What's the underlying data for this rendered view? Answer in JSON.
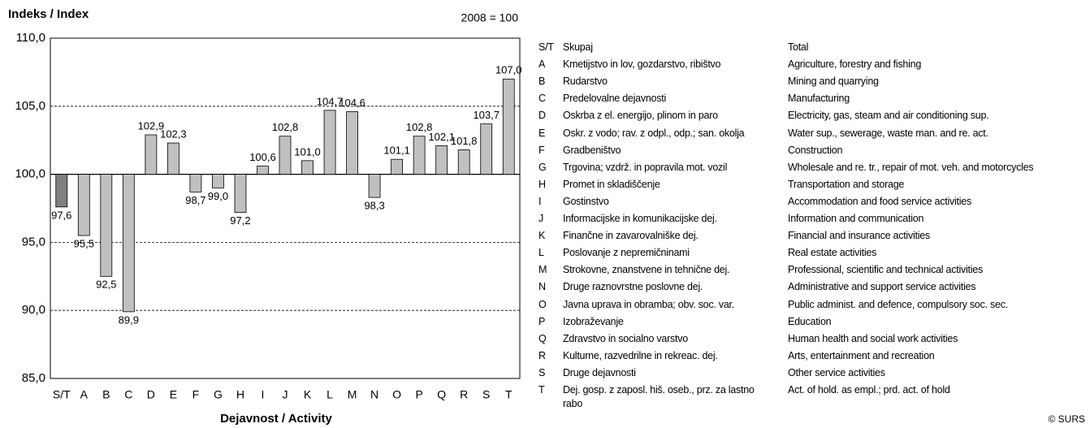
{
  "chart_data": {
    "type": "bar",
    "title": "Indeks / Index",
    "annotation": "2008 = 100",
    "x_label": "Dejavnost / Activity",
    "copyright": "© SURS",
    "categories": [
      "S/T",
      "A",
      "B",
      "C",
      "D",
      "E",
      "F",
      "G",
      "H",
      "I",
      "J",
      "K",
      "L",
      "M",
      "N",
      "O",
      "P",
      "Q",
      "R",
      "S",
      "T"
    ],
    "values": [
      97.6,
      95.5,
      92.5,
      89.9,
      102.9,
      102.3,
      98.7,
      99.0,
      97.2,
      100.6,
      102.8,
      101.0,
      104.7,
      104.6,
      98.3,
      101.1,
      102.8,
      102.1,
      101.8,
      103.7,
      107.0
    ],
    "value_labels": [
      "97,6",
      "95,5",
      "92,5",
      "89,9",
      "102,9",
      "102,3",
      "98,7",
      "99,0",
      "97,2",
      "100,6",
      "102,8",
      "101,0",
      "104,7",
      "104,6",
      "98,3",
      "101,1",
      "102,8",
      "102,1",
      "101,8",
      "103,7",
      "107,0"
    ],
    "colors": [
      "#808080",
      "#c0c0c0",
      "#c0c0c0",
      "#c0c0c0",
      "#c0c0c0",
      "#c0c0c0",
      "#c0c0c0",
      "#c0c0c0",
      "#c0c0c0",
      "#c0c0c0",
      "#c0c0c0",
      "#c0c0c0",
      "#c0c0c0",
      "#c0c0c0",
      "#c0c0c0",
      "#c0c0c0",
      "#c0c0c0",
      "#c0c0c0",
      "#c0c0c0",
      "#c0c0c0",
      "#c0c0c0"
    ],
    "baseline": 100,
    "ylim": [
      85,
      110
    ],
    "yticks": [
      {
        "value": 85,
        "label": "85,0"
      },
      {
        "value": 90,
        "label": "90,0"
      },
      {
        "value": 95,
        "label": "95,0"
      },
      {
        "value": 100,
        "label": "100,0"
      },
      {
        "value": 105,
        "label": "105,0"
      },
      {
        "value": 110,
        "label": "110,0"
      }
    ],
    "grid": true,
    "legend_table": {
      "rows": [
        [
          "S/T",
          "Skupaj",
          "Total"
        ],
        [
          "A",
          "Kmetijstvo in lov, gozdarstvo, ribištvo",
          "Agriculture, forestry and fishing"
        ],
        [
          "B",
          "Rudarstvo",
          "Mining and quarrying"
        ],
        [
          "C",
          "Predelovalne dejavnosti",
          "Manufacturing"
        ],
        [
          "D",
          "Oskrba z el. energijo, plinom in paro",
          "Electricity, gas, steam and air conditioning sup."
        ],
        [
          "E",
          "Oskr. z vodo; rav. z odpl., odp.; san. okolja",
          "Water sup., sewerage, waste man. and re. act."
        ],
        [
          "F",
          "Gradbeništvo",
          "Construction"
        ],
        [
          "G",
          "Trgovina; vzdrž. in popravila mot. vozil",
          "Wholesale and re. tr., repair of mot. veh. and motorcycles"
        ],
        [
          "H",
          "Promet in skladiščenje",
          "Transportation and storage"
        ],
        [
          "I",
          "Gostinstvo",
          "Accommodation and food service activities"
        ],
        [
          "J",
          "Informacijske in komunikacijske dej.",
          "Information and communication"
        ],
        [
          "K",
          "Finančne in zavarovalniške dej.",
          "Financial and insurance activities"
        ],
        [
          "L",
          "Poslovanje z nepremičninami",
          "Real estate activities"
        ],
        [
          "M",
          "Strokovne, znanstvene in tehnične dej.",
          "Professional, scientific and technical activities"
        ],
        [
          "N",
          "Druge raznovrstne poslovne dej.",
          "Administrative and support service activities"
        ],
        [
          "O",
          "Javna uprava in obramba; obv.  soc.  var.",
          "Public administ. and defence, compulsory soc. sec."
        ],
        [
          "P",
          "Izobraževanje",
          "Education"
        ],
        [
          "Q",
          "Zdravstvo in socialno varstvo",
          "Human health and social work activities"
        ],
        [
          "R",
          "Kulturne, razvedrilne in rekreac. dej.",
          "Arts, entertainment and recreation"
        ],
        [
          "S",
          "Druge dejavnosti",
          "Other service activities"
        ],
        [
          "T",
          "Dej. gosp. z zaposl. hiš. oseb.,  prz. za lastno rabo",
          "Act. of hold. as empl.; prd. act. of hold"
        ]
      ]
    }
  }
}
